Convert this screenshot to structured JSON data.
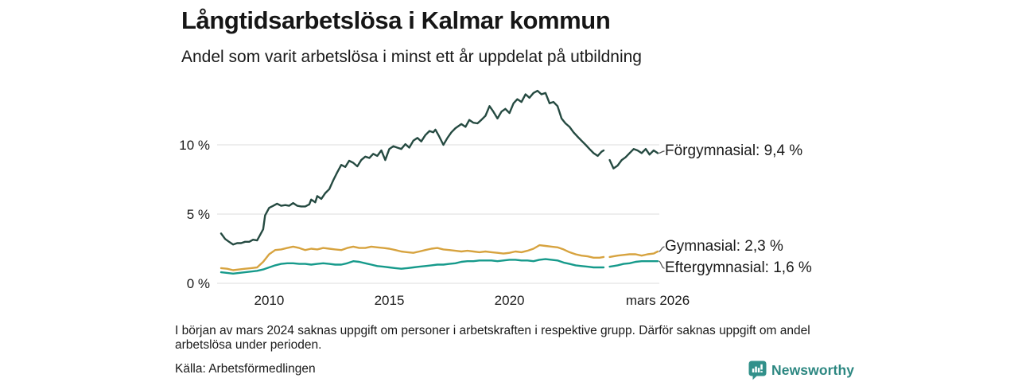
{
  "header": {
    "title": "Långtidsarbetslösa i Kalmar kommun",
    "subtitle": "Andel som varit arbetslösa i minst ett år uppdelat på utbildning"
  },
  "chart_data": {
    "type": "line",
    "title": "Långtidsarbetslösa i Kalmar kommun",
    "subtitle": "Andel som varit arbetslösa i minst ett år uppdelat på utbildning",
    "unit": "%",
    "grid": true,
    "legend_position": "end-of-line-labels-right",
    "x_range": [
      2008,
      2026.17
    ],
    "ylim": [
      0,
      14.5
    ],
    "x_ticks": [
      {
        "pos": 2010,
        "label": "2010"
      },
      {
        "pos": 2015,
        "label": "2015"
      },
      {
        "pos": 2020,
        "label": "2020"
      },
      {
        "pos": 2026.17,
        "label": "mars 2026"
      }
    ],
    "y_ticks": [
      {
        "pos": 0,
        "label": "0 %"
      },
      {
        "pos": 5,
        "label": "5 %"
      },
      {
        "pos": 10,
        "label": "10 %"
      }
    ],
    "data_gap": {
      "from": 2023.92,
      "to": 2024.17
    },
    "series": [
      {
        "name": "Förgymnasial",
        "end_label": "Förgymnasial: 9,4 %",
        "last_value": 9.4,
        "color": "#254a41",
        "points": [
          [
            2008.0,
            3.6
          ],
          [
            2008.17,
            3.2
          ],
          [
            2008.33,
            3.0
          ],
          [
            2008.5,
            2.8
          ],
          [
            2008.67,
            2.9
          ],
          [
            2008.83,
            2.9
          ],
          [
            2009.0,
            3.0
          ],
          [
            2009.17,
            3.0
          ],
          [
            2009.33,
            3.15
          ],
          [
            2009.5,
            3.1
          ],
          [
            2009.58,
            3.35
          ],
          [
            2009.75,
            3.9
          ],
          [
            2009.83,
            4.9
          ],
          [
            2010.0,
            5.45
          ],
          [
            2010.17,
            5.6
          ],
          [
            2010.33,
            5.75
          ],
          [
            2010.5,
            5.6
          ],
          [
            2010.67,
            5.65
          ],
          [
            2010.83,
            5.6
          ],
          [
            2011.0,
            5.8
          ],
          [
            2011.17,
            5.6
          ],
          [
            2011.33,
            5.55
          ],
          [
            2011.5,
            5.55
          ],
          [
            2011.67,
            5.7
          ],
          [
            2011.75,
            6.05
          ],
          [
            2011.92,
            5.85
          ],
          [
            2012.0,
            6.3
          ],
          [
            2012.17,
            6.1
          ],
          [
            2012.33,
            6.5
          ],
          [
            2012.5,
            6.8
          ],
          [
            2012.67,
            7.45
          ],
          [
            2012.83,
            8.0
          ],
          [
            2013.0,
            8.55
          ],
          [
            2013.17,
            8.4
          ],
          [
            2013.33,
            8.85
          ],
          [
            2013.5,
            8.7
          ],
          [
            2013.67,
            8.45
          ],
          [
            2013.83,
            8.9
          ],
          [
            2014.0,
            9.15
          ],
          [
            2014.17,
            9.05
          ],
          [
            2014.33,
            9.35
          ],
          [
            2014.5,
            9.2
          ],
          [
            2014.67,
            9.6
          ],
          [
            2014.83,
            8.9
          ],
          [
            2015.0,
            9.7
          ],
          [
            2015.17,
            9.9
          ],
          [
            2015.33,
            9.8
          ],
          [
            2015.5,
            9.7
          ],
          [
            2015.67,
            10.05
          ],
          [
            2015.83,
            9.8
          ],
          [
            2016.0,
            10.3
          ],
          [
            2016.17,
            10.5
          ],
          [
            2016.33,
            10.25
          ],
          [
            2016.5,
            10.7
          ],
          [
            2016.67,
            11.0
          ],
          [
            2016.83,
            10.9
          ],
          [
            2016.92,
            11.1
          ],
          [
            2017.08,
            10.6
          ],
          [
            2017.25,
            10.0
          ],
          [
            2017.42,
            10.5
          ],
          [
            2017.58,
            10.9
          ],
          [
            2017.75,
            11.2
          ],
          [
            2018.0,
            11.5
          ],
          [
            2018.17,
            11.3
          ],
          [
            2018.33,
            11.8
          ],
          [
            2018.5,
            11.6
          ],
          [
            2018.67,
            11.55
          ],
          [
            2018.83,
            11.8
          ],
          [
            2019.0,
            12.1
          ],
          [
            2019.17,
            12.8
          ],
          [
            2019.33,
            12.4
          ],
          [
            2019.5,
            11.9
          ],
          [
            2019.67,
            12.4
          ],
          [
            2019.83,
            12.6
          ],
          [
            2020.0,
            12.3
          ],
          [
            2020.17,
            13.0
          ],
          [
            2020.33,
            13.3
          ],
          [
            2020.5,
            13.1
          ],
          [
            2020.67,
            13.65
          ],
          [
            2020.83,
            13.4
          ],
          [
            2021.0,
            13.75
          ],
          [
            2021.17,
            13.9
          ],
          [
            2021.33,
            13.65
          ],
          [
            2021.5,
            13.75
          ],
          [
            2021.67,
            13.0
          ],
          [
            2021.83,
            13.1
          ],
          [
            2022.0,
            12.8
          ],
          [
            2022.17,
            11.9
          ],
          [
            2022.33,
            11.55
          ],
          [
            2022.5,
            11.3
          ],
          [
            2022.67,
            10.9
          ],
          [
            2022.83,
            10.6
          ],
          [
            2023.0,
            10.3
          ],
          [
            2023.17,
            10.0
          ],
          [
            2023.33,
            9.7
          ],
          [
            2023.5,
            9.4
          ],
          [
            2023.67,
            9.2
          ],
          [
            2023.83,
            9.5
          ],
          [
            2023.92,
            9.6
          ]
        ],
        "points_after_gap": [
          [
            2024.17,
            8.9
          ],
          [
            2024.33,
            8.3
          ],
          [
            2024.5,
            8.5
          ],
          [
            2024.67,
            8.9
          ],
          [
            2024.83,
            9.1
          ],
          [
            2025.0,
            9.4
          ],
          [
            2025.17,
            9.7
          ],
          [
            2025.33,
            9.6
          ],
          [
            2025.5,
            9.4
          ],
          [
            2025.67,
            9.7
          ],
          [
            2025.83,
            9.3
          ],
          [
            2026.0,
            9.6
          ],
          [
            2026.17,
            9.4
          ]
        ]
      },
      {
        "name": "Gymnasial",
        "end_label": "Gymnasial: 2,3 %",
        "last_value": 2.3,
        "color": "#d7a33f",
        "points": [
          [
            2008.0,
            1.1
          ],
          [
            2008.25,
            1.05
          ],
          [
            2008.5,
            0.95
          ],
          [
            2008.75,
            1.0
          ],
          [
            2009.0,
            1.05
          ],
          [
            2009.25,
            1.1
          ],
          [
            2009.5,
            1.15
          ],
          [
            2009.75,
            1.55
          ],
          [
            2010.0,
            2.1
          ],
          [
            2010.25,
            2.4
          ],
          [
            2010.5,
            2.45
          ],
          [
            2010.75,
            2.55
          ],
          [
            2011.0,
            2.65
          ],
          [
            2011.25,
            2.55
          ],
          [
            2011.5,
            2.4
          ],
          [
            2011.75,
            2.5
          ],
          [
            2012.0,
            2.45
          ],
          [
            2012.25,
            2.55
          ],
          [
            2012.5,
            2.5
          ],
          [
            2012.75,
            2.45
          ],
          [
            2013.0,
            2.4
          ],
          [
            2013.25,
            2.55
          ],
          [
            2013.5,
            2.65
          ],
          [
            2013.75,
            2.55
          ],
          [
            2014.0,
            2.55
          ],
          [
            2014.25,
            2.65
          ],
          [
            2014.5,
            2.6
          ],
          [
            2014.75,
            2.55
          ],
          [
            2015.0,
            2.5
          ],
          [
            2015.25,
            2.4
          ],
          [
            2015.5,
            2.3
          ],
          [
            2015.75,
            2.25
          ],
          [
            2016.0,
            2.2
          ],
          [
            2016.25,
            2.3
          ],
          [
            2016.5,
            2.4
          ],
          [
            2016.75,
            2.5
          ],
          [
            2017.0,
            2.55
          ],
          [
            2017.25,
            2.45
          ],
          [
            2017.5,
            2.4
          ],
          [
            2017.75,
            2.35
          ],
          [
            2018.0,
            2.3
          ],
          [
            2018.25,
            2.35
          ],
          [
            2018.5,
            2.3
          ],
          [
            2018.75,
            2.25
          ],
          [
            2019.0,
            2.3
          ],
          [
            2019.25,
            2.25
          ],
          [
            2019.5,
            2.2
          ],
          [
            2019.75,
            2.15
          ],
          [
            2020.0,
            2.2
          ],
          [
            2020.25,
            2.3
          ],
          [
            2020.5,
            2.25
          ],
          [
            2020.75,
            2.35
          ],
          [
            2021.0,
            2.5
          ],
          [
            2021.25,
            2.75
          ],
          [
            2021.5,
            2.7
          ],
          [
            2021.75,
            2.65
          ],
          [
            2022.0,
            2.6
          ],
          [
            2022.25,
            2.45
          ],
          [
            2022.5,
            2.25
          ],
          [
            2022.75,
            2.1
          ],
          [
            2023.0,
            2.0
          ],
          [
            2023.25,
            1.95
          ],
          [
            2023.5,
            1.85
          ],
          [
            2023.75,
            1.85
          ],
          [
            2023.92,
            1.9
          ]
        ],
        "points_after_gap": [
          [
            2024.17,
            1.9
          ],
          [
            2024.33,
            1.95
          ],
          [
            2024.5,
            2.0
          ],
          [
            2024.75,
            2.05
          ],
          [
            2025.0,
            2.1
          ],
          [
            2025.25,
            2.1
          ],
          [
            2025.5,
            2.0
          ],
          [
            2025.75,
            2.1
          ],
          [
            2026.0,
            2.15
          ],
          [
            2026.17,
            2.3
          ]
        ]
      },
      {
        "name": "Eftergymnasial",
        "end_label": "Eftergymnasial: 1,6 %",
        "last_value": 1.6,
        "color": "#169a8b",
        "points": [
          [
            2008.0,
            0.8
          ],
          [
            2008.25,
            0.75
          ],
          [
            2008.5,
            0.7
          ],
          [
            2008.75,
            0.75
          ],
          [
            2009.0,
            0.8
          ],
          [
            2009.25,
            0.85
          ],
          [
            2009.5,
            0.9
          ],
          [
            2009.75,
            1.0
          ],
          [
            2010.0,
            1.15
          ],
          [
            2010.25,
            1.3
          ],
          [
            2010.5,
            1.4
          ],
          [
            2010.75,
            1.45
          ],
          [
            2011.0,
            1.45
          ],
          [
            2011.25,
            1.4
          ],
          [
            2011.5,
            1.4
          ],
          [
            2011.75,
            1.35
          ],
          [
            2012.0,
            1.4
          ],
          [
            2012.25,
            1.45
          ],
          [
            2012.5,
            1.4
          ],
          [
            2012.75,
            1.35
          ],
          [
            2013.0,
            1.35
          ],
          [
            2013.25,
            1.45
          ],
          [
            2013.5,
            1.6
          ],
          [
            2013.75,
            1.55
          ],
          [
            2014.0,
            1.45
          ],
          [
            2014.25,
            1.35
          ],
          [
            2014.5,
            1.25
          ],
          [
            2014.75,
            1.2
          ],
          [
            2015.0,
            1.15
          ],
          [
            2015.25,
            1.1
          ],
          [
            2015.5,
            1.05
          ],
          [
            2015.75,
            1.1
          ],
          [
            2016.0,
            1.15
          ],
          [
            2016.25,
            1.2
          ],
          [
            2016.5,
            1.25
          ],
          [
            2016.75,
            1.3
          ],
          [
            2017.0,
            1.35
          ],
          [
            2017.25,
            1.35
          ],
          [
            2017.5,
            1.4
          ],
          [
            2017.75,
            1.45
          ],
          [
            2018.0,
            1.55
          ],
          [
            2018.25,
            1.6
          ],
          [
            2018.5,
            1.6
          ],
          [
            2018.75,
            1.65
          ],
          [
            2019.0,
            1.65
          ],
          [
            2019.25,
            1.65
          ],
          [
            2019.5,
            1.6
          ],
          [
            2019.75,
            1.65
          ],
          [
            2020.0,
            1.7
          ],
          [
            2020.25,
            1.7
          ],
          [
            2020.5,
            1.65
          ],
          [
            2020.75,
            1.65
          ],
          [
            2021.0,
            1.6
          ],
          [
            2021.25,
            1.7
          ],
          [
            2021.5,
            1.75
          ],
          [
            2021.75,
            1.7
          ],
          [
            2022.0,
            1.65
          ],
          [
            2022.25,
            1.5
          ],
          [
            2022.5,
            1.4
          ],
          [
            2022.75,
            1.3
          ],
          [
            2023.0,
            1.25
          ],
          [
            2023.25,
            1.2
          ],
          [
            2023.5,
            1.15
          ],
          [
            2023.75,
            1.15
          ],
          [
            2023.92,
            1.15
          ]
        ],
        "points_after_gap": [
          [
            2024.17,
            1.2
          ],
          [
            2024.33,
            1.25
          ],
          [
            2024.5,
            1.3
          ],
          [
            2024.75,
            1.4
          ],
          [
            2025.0,
            1.45
          ],
          [
            2025.25,
            1.55
          ],
          [
            2025.5,
            1.6
          ],
          [
            2025.75,
            1.6
          ],
          [
            2026.0,
            1.6
          ],
          [
            2026.17,
            1.6
          ]
        ]
      }
    ]
  },
  "footnote": {
    "lines": [
      "I början av mars 2024 saknas uppgift om personer i arbetskraften i respektive grupp. Därför saknas uppgift om",
      "andel arbetslösa under perioden."
    ],
    "source": "Källa: Arbetsförmedlingen"
  },
  "branding": {
    "name": "Newsworthy",
    "icon": "bar-chart-speech-bubble-icon",
    "color": "#2c8781"
  },
  "style": {
    "grid_color": "#dedede",
    "text_color": "#1a1a1a",
    "connector_color": "#555555"
  }
}
